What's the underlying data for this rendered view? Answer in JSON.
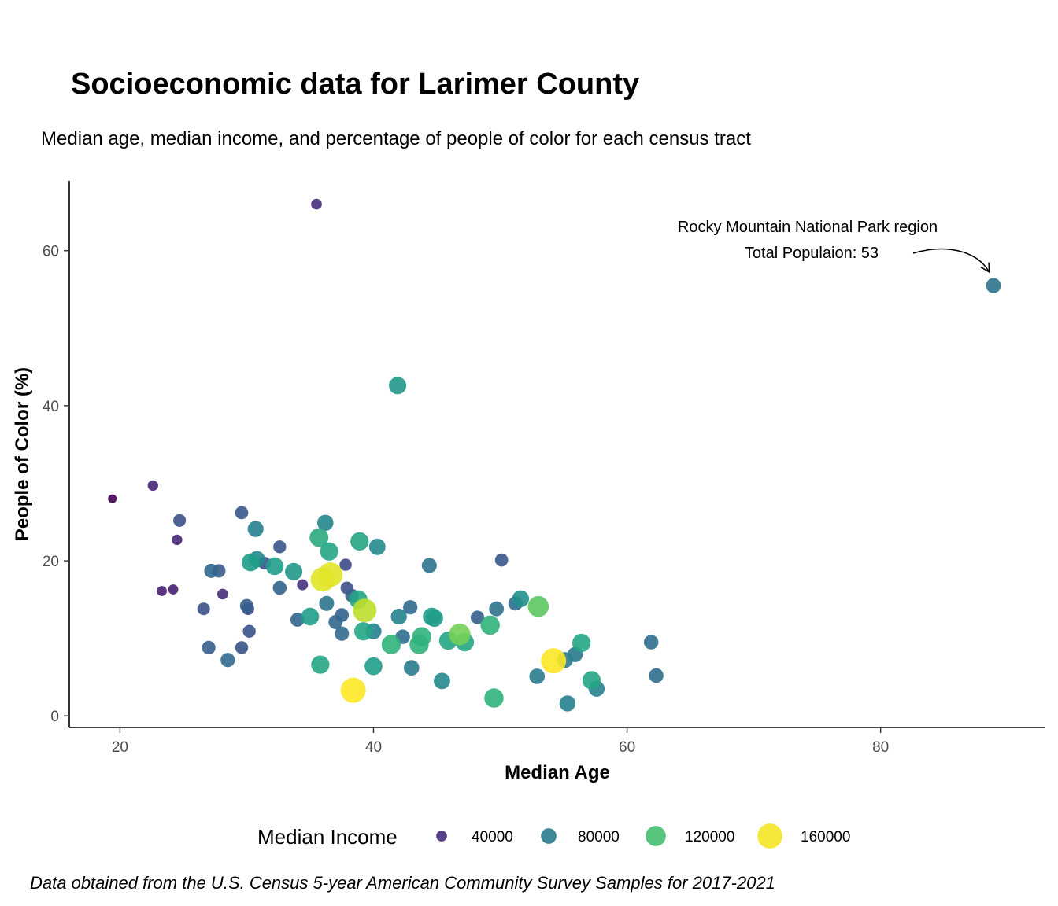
{
  "chart_data": {
    "type": "scatter",
    "title": "Socioeconomic data for Larimer County",
    "subtitle": "Median age, median income, and percentage of people of color for each census tract",
    "caption": "Data obtained from the U.S. Census 5-year American Community Survey Samples for 2017-2021",
    "xlabel": "Median Age",
    "ylabel": "People of Color (%)",
    "xlim": [
      16,
      93
    ],
    "ylim": [
      -1.5,
      69
    ],
    "x_ticks": [
      20,
      40,
      60,
      80
    ],
    "y_ticks": [
      0,
      20,
      40,
      60
    ],
    "grid": false,
    "legend": {
      "title": "Median Income",
      "position": "bottom",
      "entries": [
        {
          "label": "40000",
          "value": 40000
        },
        {
          "label": "80000",
          "value": 80000
        },
        {
          "label": "120000",
          "value": 120000
        },
        {
          "label": "160000",
          "value": 160000
        }
      ]
    },
    "annotation": {
      "lines": [
        "Rocky Mountain National Park region",
        "Total Populaion: 53"
      ],
      "target": {
        "x": 88.9,
        "y": 55.5
      }
    },
    "points": [
      {
        "x": 19.4,
        "y": 28.0,
        "income": 22000
      },
      {
        "x": 22.6,
        "y": 29.7,
        "income": 38000
      },
      {
        "x": 23.3,
        "y": 16.1,
        "income": 34000
      },
      {
        "x": 24.2,
        "y": 16.3,
        "income": 34000
      },
      {
        "x": 24.5,
        "y": 22.7,
        "income": 38000
      },
      {
        "x": 24.7,
        "y": 25.2,
        "income": 56000
      },
      {
        "x": 26.6,
        "y": 13.8,
        "income": 56000
      },
      {
        "x": 27.0,
        "y": 8.8,
        "income": 64000
      },
      {
        "x": 27.2,
        "y": 18.7,
        "income": 68000
      },
      {
        "x": 27.8,
        "y": 18.7,
        "income": 62000
      },
      {
        "x": 28.1,
        "y": 15.7,
        "income": 40000
      },
      {
        "x": 28.5,
        "y": 7.2,
        "income": 70000
      },
      {
        "x": 29.6,
        "y": 26.2,
        "income": 60000
      },
      {
        "x": 29.6,
        "y": 8.8,
        "income": 58000
      },
      {
        "x": 30.0,
        "y": 14.2,
        "income": 64000
      },
      {
        "x": 30.1,
        "y": 13.8,
        "income": 54000
      },
      {
        "x": 30.2,
        "y": 10.9,
        "income": 58000
      },
      {
        "x": 30.3,
        "y": 19.8,
        "income": 100000
      },
      {
        "x": 30.7,
        "y": 24.1,
        "income": 84000
      },
      {
        "x": 30.8,
        "y": 20.2,
        "income": 88000
      },
      {
        "x": 31.4,
        "y": 19.7,
        "income": 56000
      },
      {
        "x": 32.2,
        "y": 19.3,
        "income": 100000
      },
      {
        "x": 32.6,
        "y": 21.8,
        "income": 58000
      },
      {
        "x": 32.6,
        "y": 16.5,
        "income": 66000
      },
      {
        "x": 33.7,
        "y": 18.6,
        "income": 96000
      },
      {
        "x": 34.0,
        "y": 12.4,
        "income": 68000
      },
      {
        "x": 34.4,
        "y": 16.9,
        "income": 42000
      },
      {
        "x": 35.0,
        "y": 12.8,
        "income": 100000
      },
      {
        "x": 35.5,
        "y": 66.0,
        "income": 40000
      },
      {
        "x": 35.7,
        "y": 23.0,
        "income": 108000
      },
      {
        "x": 35.8,
        "y": 6.6,
        "income": 104000
      },
      {
        "x": 36.0,
        "y": 17.6,
        "income": 156000
      },
      {
        "x": 36.2,
        "y": 24.9,
        "income": 86000
      },
      {
        "x": 36.3,
        "y": 14.5,
        "income": 76000
      },
      {
        "x": 36.5,
        "y": 21.2,
        "income": 104000
      },
      {
        "x": 36.6,
        "y": 18.2,
        "income": 156000
      },
      {
        "x": 37.0,
        "y": 12.1,
        "income": 68000
      },
      {
        "x": 37.5,
        "y": 13.0,
        "income": 66000
      },
      {
        "x": 37.5,
        "y": 10.6,
        "income": 70000
      },
      {
        "x": 37.8,
        "y": 19.5,
        "income": 52000
      },
      {
        "x": 37.9,
        "y": 16.5,
        "income": 56000
      },
      {
        "x": 38.3,
        "y": 15.5,
        "income": 64000
      },
      {
        "x": 38.4,
        "y": 3.3,
        "income": 162000
      },
      {
        "x": 38.8,
        "y": 15.0,
        "income": 104000
      },
      {
        "x": 38.9,
        "y": 22.5,
        "income": 104000
      },
      {
        "x": 39.2,
        "y": 10.9,
        "income": 104000
      },
      {
        "x": 39.3,
        "y": 13.6,
        "income": 148000
      },
      {
        "x": 40.0,
        "y": 10.9,
        "income": 84000
      },
      {
        "x": 40.0,
        "y": 6.4,
        "income": 100000
      },
      {
        "x": 40.3,
        "y": 21.8,
        "income": 88000
      },
      {
        "x": 41.4,
        "y": 9.2,
        "income": 112000
      },
      {
        "x": 41.9,
        "y": 42.6,
        "income": 96000
      },
      {
        "x": 42.0,
        "y": 12.8,
        "income": 84000
      },
      {
        "x": 42.3,
        "y": 10.2,
        "income": 72000
      },
      {
        "x": 42.9,
        "y": 14.0,
        "income": 70000
      },
      {
        "x": 43.0,
        "y": 6.2,
        "income": 80000
      },
      {
        "x": 43.6,
        "y": 9.2,
        "income": 112000
      },
      {
        "x": 43.8,
        "y": 10.2,
        "income": 112000
      },
      {
        "x": 44.4,
        "y": 19.4,
        "income": 76000
      },
      {
        "x": 44.6,
        "y": 12.8,
        "income": 100000
      },
      {
        "x": 44.8,
        "y": 12.6,
        "income": 96000
      },
      {
        "x": 45.4,
        "y": 4.5,
        "income": 88000
      },
      {
        "x": 45.9,
        "y": 9.7,
        "income": 104000
      },
      {
        "x": 46.8,
        "y": 10.5,
        "income": 132000
      },
      {
        "x": 47.2,
        "y": 9.5,
        "income": 104000
      },
      {
        "x": 48.2,
        "y": 12.7,
        "income": 64000
      },
      {
        "x": 49.2,
        "y": 11.7,
        "income": 112000
      },
      {
        "x": 49.5,
        "y": 2.3,
        "income": 112000
      },
      {
        "x": 49.7,
        "y": 13.8,
        "income": 74000
      },
      {
        "x": 50.1,
        "y": 20.1,
        "income": 60000
      },
      {
        "x": 51.2,
        "y": 14.5,
        "income": 70000
      },
      {
        "x": 51.6,
        "y": 15.1,
        "income": 92000
      },
      {
        "x": 52.9,
        "y": 5.1,
        "income": 80000
      },
      {
        "x": 53.0,
        "y": 14.1,
        "income": 126000
      },
      {
        "x": 54.2,
        "y": 7.1,
        "income": 162000
      },
      {
        "x": 55.1,
        "y": 7.2,
        "income": 84000
      },
      {
        "x": 55.3,
        "y": 1.6,
        "income": 84000
      },
      {
        "x": 55.9,
        "y": 7.9,
        "income": 78000
      },
      {
        "x": 56.4,
        "y": 9.4,
        "income": 104000
      },
      {
        "x": 57.2,
        "y": 4.6,
        "income": 104000
      },
      {
        "x": 57.6,
        "y": 3.5,
        "income": 84000
      },
      {
        "x": 61.9,
        "y": 9.5,
        "income": 72000
      },
      {
        "x": 62.3,
        "y": 5.2,
        "income": 72000
      },
      {
        "x": 88.9,
        "y": 55.5,
        "income": 76000
      }
    ]
  }
}
